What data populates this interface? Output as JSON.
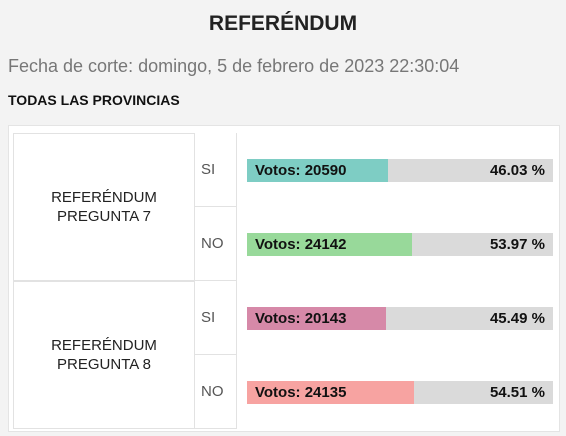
{
  "header": {
    "title": "REFERÉNDUM",
    "subtitle": "Fecha de corte: domingo, 5 de febrero de 2023 22:30:04",
    "scope": "TODAS LAS PROVINCIAS"
  },
  "questions": [
    {
      "label": "REFERÉNDUM PREGUNTA 7",
      "answers": [
        {
          "option": "SI",
          "votes_label": "Votos: 20590",
          "percent": 46.03,
          "percent_label": "46.03 %",
          "color": "#7ecdc4"
        },
        {
          "option": "NO",
          "votes_label": "Votos: 24142",
          "percent": 53.97,
          "percent_label": "53.97 %",
          "color": "#98d99a"
        }
      ]
    },
    {
      "label": "REFERÉNDUM PREGUNTA 8",
      "answers": [
        {
          "option": "SI",
          "votes_label": "Votos: 20143",
          "percent": 45.49,
          "percent_label": "45.49 %",
          "color": "#d689a8"
        },
        {
          "option": "NO",
          "votes_label": "Votos: 24135",
          "percent": 54.51,
          "percent_label": "54.51 %",
          "color": "#f7a3a1"
        }
      ]
    }
  ]
}
